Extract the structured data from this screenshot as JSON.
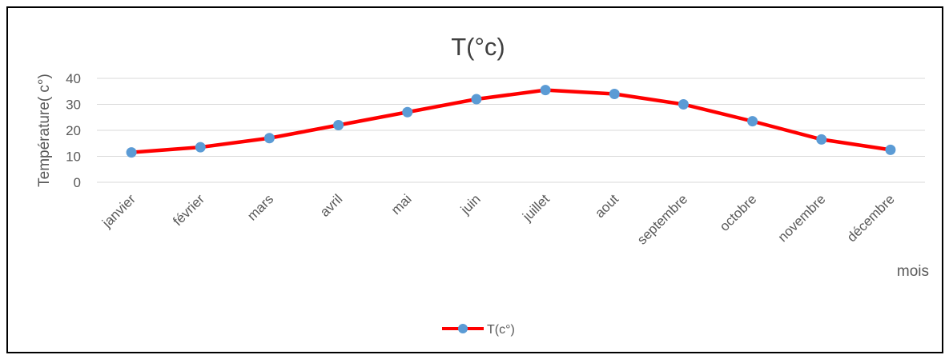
{
  "chart_data": {
    "type": "line",
    "title": "T(°c)",
    "xlabel": "mois",
    "ylabel": "Température( c°)",
    "categories": [
      "janvier",
      "février",
      "mars",
      "avril",
      "mai",
      "juin",
      "juillet",
      "aout",
      "septembre",
      "octobre",
      "novembre",
      "décembre"
    ],
    "series": [
      {
        "name": "T(c°)",
        "values": [
          11.5,
          13.5,
          17,
          22,
          27,
          32,
          35.5,
          34,
          30,
          23.5,
          16.5,
          12.5
        ],
        "line_color": "#ff0000",
        "marker_color": "#5b9bd5"
      }
    ],
    "ylim": [
      0,
      40
    ],
    "yticks": [
      "0",
      "10",
      "20",
      "30",
      "40"
    ],
    "grid": true,
    "legend_position": "bottom"
  }
}
